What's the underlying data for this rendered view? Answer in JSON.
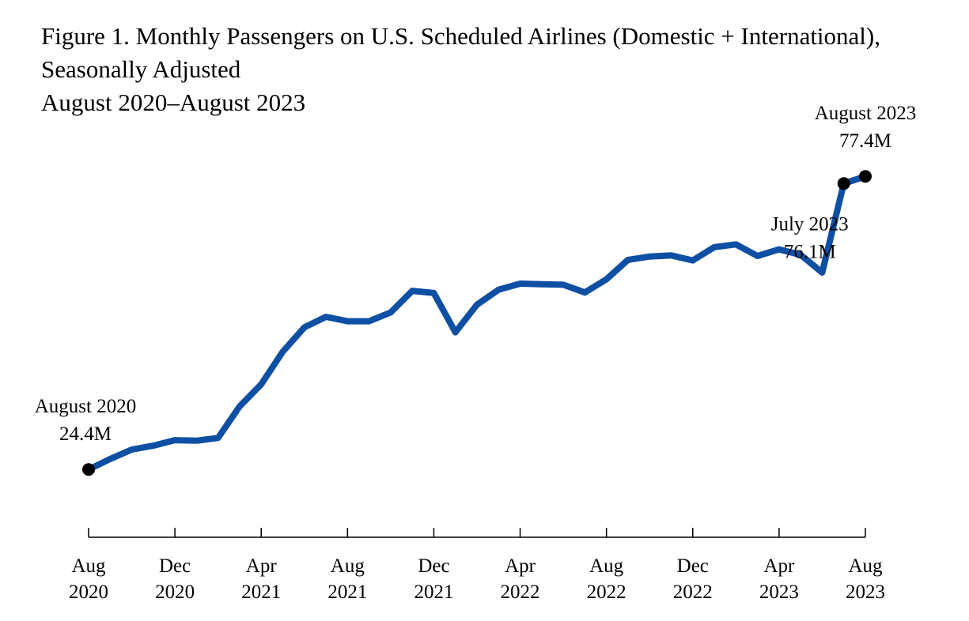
{
  "chart_data": {
    "type": "line",
    "title_lines": [
      "Figure 1. Monthly Passengers on U.S. Scheduled Airlines (Domestic + International),",
      "Seasonally Adjusted",
      "August 2020–August 2023"
    ],
    "xlabel": "",
    "ylabel": "",
    "grid": false,
    "legend": "none",
    "y_unit": "millions of passengers",
    "ylim": [
      15,
      85
    ],
    "x": [
      "2020-08",
      "2020-09",
      "2020-10",
      "2020-11",
      "2020-12",
      "2021-01",
      "2021-02",
      "2021-03",
      "2021-04",
      "2021-05",
      "2021-06",
      "2021-07",
      "2021-08",
      "2021-09",
      "2021-10",
      "2021-11",
      "2021-12",
      "2022-01",
      "2022-02",
      "2022-03",
      "2022-04",
      "2022-05",
      "2022-06",
      "2022-07",
      "2022-08",
      "2022-09",
      "2022-10",
      "2022-11",
      "2022-12",
      "2023-01",
      "2023-02",
      "2023-03",
      "2023-04",
      "2023-05",
      "2023-06",
      "2023-07",
      "2023-08"
    ],
    "series": [
      {
        "name": "Monthly passengers, seasonally adjusted",
        "color": "#0d4fa3",
        "values": [
          24.4,
          26.3,
          28.0,
          28.7,
          29.7,
          29.6,
          30.1,
          35.8,
          39.8,
          45.7,
          50.1,
          52.0,
          51.2,
          51.2,
          52.8,
          56.7,
          56.3,
          49.2,
          54.2,
          56.9,
          58.0,
          57.9,
          57.8,
          56.4,
          58.8,
          62.3,
          62.9,
          63.1,
          62.2,
          64.6,
          65.1,
          63.0,
          64.2,
          63.2,
          60.0,
          76.1,
          77.4
        ]
      }
    ],
    "x_ticks": [
      {
        "month": "Aug",
        "year": "2020",
        "index": 0
      },
      {
        "month": "Dec",
        "year": "2020",
        "index": 4
      },
      {
        "month": "Apr",
        "year": "2021",
        "index": 8
      },
      {
        "month": "Aug",
        "year": "2021",
        "index": 12
      },
      {
        "month": "Dec",
        "year": "2021",
        "index": 16
      },
      {
        "month": "Apr",
        "year": "2022",
        "index": 20
      },
      {
        "month": "Aug",
        "year": "2022",
        "index": 24
      },
      {
        "month": "Dec",
        "year": "2022",
        "index": 28
      },
      {
        "month": "Apr",
        "year": "2023",
        "index": 32
      },
      {
        "month": "Aug",
        "year": "2023",
        "index": 36
      }
    ],
    "highlighted_points": [
      {
        "index": 0,
        "label": "August 2020",
        "value_label": "24.4M",
        "placement": "above"
      },
      {
        "index": 35,
        "label": "July 2023",
        "value_label": "76.1M",
        "placement": "below"
      },
      {
        "index": 36,
        "label": "August 2023",
        "value_label": "77.4M",
        "placement": "above"
      }
    ],
    "marker_color": "#000000",
    "axis_color": "#000000"
  }
}
